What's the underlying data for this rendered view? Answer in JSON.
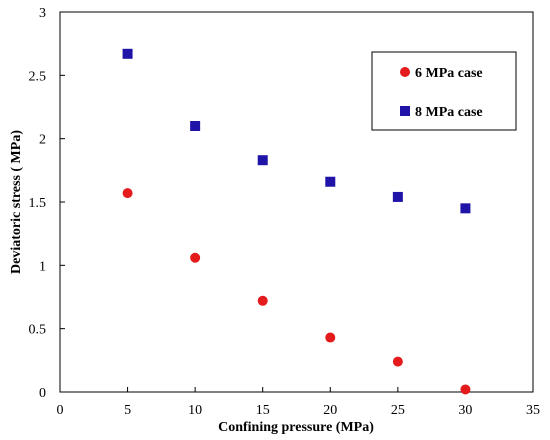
{
  "chart_data": {
    "type": "scatter",
    "xlabel": "Confining pressure (MPa)",
    "ylabel": "Deviatoric stress ( MPa)",
    "xlim": [
      0,
      35
    ],
    "ylim": [
      0,
      3
    ],
    "xticks": [
      "0",
      "5",
      "10",
      "15",
      "20",
      "25",
      "30",
      "35"
    ],
    "yticks": [
      "0",
      "0.5",
      "1",
      "1.5",
      "2",
      "2.5",
      "3"
    ],
    "grid": false,
    "legend_position": "top-right",
    "series": [
      {
        "name": "6 MPa case",
        "marker": "circle",
        "color": "#e41a1c",
        "x": [
          5,
          10,
          15,
          20,
          25,
          30
        ],
        "y": [
          1.57,
          1.06,
          0.72,
          0.43,
          0.24,
          0.02
        ]
      },
      {
        "name": "8 MPa case",
        "marker": "square",
        "color": "#1f13a8",
        "x": [
          5,
          10,
          15,
          20,
          25,
          30
        ],
        "y": [
          2.67,
          2.1,
          1.83,
          1.66,
          1.54,
          1.45
        ]
      }
    ]
  }
}
